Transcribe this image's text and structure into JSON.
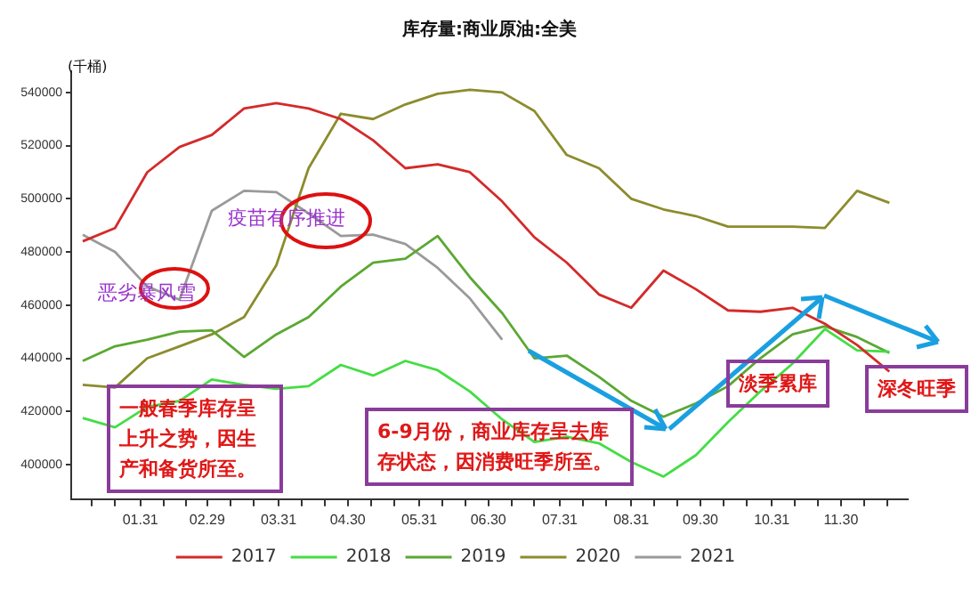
{
  "chart_data": {
    "type": "line",
    "title": "库存量:商业原油:全美",
    "ylabel": "(千桶)",
    "x": [
      "--01-06",
      "--01-20",
      "--02-03",
      "--02-17",
      "--03-02",
      "--03-16",
      "--03-30",
      "--04-13",
      "--04-27",
      "--05-11",
      "--05-25",
      "--06-08",
      "--06-22",
      "--07-06",
      "--07-20",
      "--08-03",
      "--08-17",
      "--08-31",
      "--09-14",
      "--09-28",
      "--10-12",
      "--10-26",
      "--11-09",
      "--11-23",
      "--12-07",
      "--12-21"
    ],
    "series": [
      {
        "name": "2017",
        "color": "#d42a2a",
        "values": [
          484000,
          489000,
          510000,
          519500,
          524000,
          534000,
          536000,
          534000,
          530000,
          522000,
          511500,
          513000,
          510000,
          499000,
          485500,
          476000,
          464000,
          459000,
          473000,
          466000,
          458000,
          457500,
          459000,
          453000,
          445000,
          435000
        ]
      },
      {
        "name": "2018",
        "color": "#44dd44",
        "values": [
          417500,
          414000,
          421700,
          424000,
          432000,
          430000,
          428500,
          429500,
          437500,
          433500,
          439000,
          435500,
          427500,
          417000,
          408500,
          410500,
          408000,
          401000,
          395500,
          403500,
          416000,
          427500,
          438000,
          451000,
          443000,
          442500
        ]
      },
      {
        "name": "2019",
        "color": "#5aa832",
        "values": [
          439000,
          444500,
          447000,
          450000,
          450500,
          440500,
          449000,
          455500,
          467000,
          476000,
          477500,
          486000,
          470500,
          457000,
          440000,
          441000,
          433000,
          424000,
          418000,
          423000,
          429500,
          440000,
          449000,
          452000,
          448000,
          442000
        ]
      },
      {
        "name": "2020",
        "color": "#8c8c2e",
        "values": [
          430000,
          429000,
          440000,
          444500,
          449000,
          455500,
          475000,
          511500,
          532000,
          530000,
          535500,
          539500,
          541000,
          540000,
          533000,
          516500,
          511500,
          500000,
          496000,
          493500,
          489500,
          489500,
          489500,
          489000,
          503000,
          498500
        ]
      },
      {
        "name": "2021",
        "color": "#9a9a9a",
        "values": [
          486500,
          480000,
          467000,
          462000,
          495500,
          503000,
          502500,
          494500,
          486000,
          486500,
          483000,
          474000,
          462500,
          447000,
          null,
          null,
          null,
          null,
          null,
          null,
          null,
          null,
          null,
          null,
          null,
          null
        ]
      }
    ],
    "xlim": [
      "--01-01",
      "--12-29"
    ],
    "xticks": [
      {
        "value": "--01-10",
        "label": null
      },
      {
        "value": "--01-20",
        "label": null
      },
      {
        "value": "--01-31",
        "label": "01.31"
      },
      {
        "value": "--02-10",
        "label": null
      },
      {
        "value": "--02-20",
        "label": null
      },
      {
        "value": "--02-29",
        "label": "02.29"
      },
      {
        "value": "--03-10",
        "label": null
      },
      {
        "value": "--03-20",
        "label": null
      },
      {
        "value": "--03-31",
        "label": "03.31"
      },
      {
        "value": "--04-10",
        "label": null
      },
      {
        "value": "--04-20",
        "label": null
      },
      {
        "value": "--04-30",
        "label": "04.30"
      },
      {
        "value": "--05-10",
        "label": null
      },
      {
        "value": "--05-20",
        "label": null
      },
      {
        "value": "--05-31",
        "label": "05.31"
      },
      {
        "value": "--06-10",
        "label": null
      },
      {
        "value": "--06-20",
        "label": null
      },
      {
        "value": "--06-30",
        "label": "06.30"
      },
      {
        "value": "--07-10",
        "label": null
      },
      {
        "value": "--07-20",
        "label": null
      },
      {
        "value": "--07-31",
        "label": "07.31"
      },
      {
        "value": "--08-10",
        "label": null
      },
      {
        "value": "--08-20",
        "label": null
      },
      {
        "value": "--08-31",
        "label": "08.31"
      },
      {
        "value": "--09-10",
        "label": null
      },
      {
        "value": "--09-20",
        "label": null
      },
      {
        "value": "--09-30",
        "label": "09.30"
      },
      {
        "value": "--10-10",
        "label": null
      },
      {
        "value": "--10-20",
        "label": null
      },
      {
        "value": "--10-31",
        "label": "10.31"
      },
      {
        "value": "--11-10",
        "label": null
      },
      {
        "value": "--11-20",
        "label": null
      },
      {
        "value": "--11-30",
        "label": "11.30"
      },
      {
        "value": "--12-10",
        "label": null
      },
      {
        "value": "--12-20",
        "label": null
      }
    ],
    "ylim": [
      387000,
      548000
    ],
    "yticks": [
      400000,
      420000,
      440000,
      460000,
      480000,
      500000,
      520000,
      540000
    ],
    "legend": "bottom",
    "annotations": [
      "恶劣暴风雪",
      "疫苗有序推进",
      "一般春季库存呈上升之势，因生产和备货所至。",
      "6-9月份，商业库存呈去库存状态，因消费旺季所至。",
      "淡季累库",
      "深冬旺季"
    ]
  }
}
